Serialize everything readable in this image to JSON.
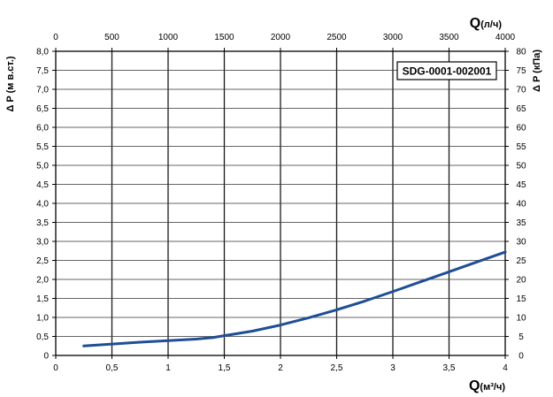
{
  "chart_data": {
    "type": "line",
    "model_label": "SDG-0001-002001",
    "x_bottom": {
      "label_main": "Q",
      "label_unit": "(м³/ч)",
      "range": [
        0,
        4
      ],
      "ticks": [
        "0",
        "0,5",
        "1",
        "1,5",
        "2",
        "2,5",
        "3",
        "3,5",
        "4"
      ]
    },
    "x_top": {
      "label_main": "Q",
      "label_unit": "(л/ч)",
      "range": [
        0,
        4000
      ],
      "ticks": [
        "0",
        "500",
        "1000",
        "1500",
        "2000",
        "2500",
        "3000",
        "3500",
        "4000"
      ]
    },
    "y_left": {
      "label": "Δ P (м в.ст.)",
      "range": [
        0,
        8
      ],
      "ticks": [
        "0",
        "0,5",
        "1,0",
        "1,5",
        "2,0",
        "2,5",
        "3,0",
        "3,5",
        "4,0",
        "4,5",
        "5,0",
        "5,5",
        "6,0",
        "6,5",
        "7,0",
        "7,5",
        "8,0"
      ]
    },
    "y_right": {
      "label": "Δ P (кПа)",
      "range": [
        0,
        80
      ],
      "ticks": [
        "0",
        "5",
        "10",
        "15",
        "20",
        "25",
        "30",
        "35",
        "40",
        "45",
        "50",
        "55",
        "60",
        "65",
        "70",
        "75",
        "80"
      ]
    },
    "grid": true,
    "series": [
      {
        "color": "#1f4e96",
        "x": [
          0.25,
          0.5,
          0.75,
          1.0,
          1.25,
          1.4,
          1.5,
          1.75,
          2.0,
          2.25,
          2.5,
          2.75,
          3.0,
          3.25,
          3.5,
          3.75,
          4.0
        ],
        "y": [
          0.25,
          0.3,
          0.35,
          0.39,
          0.43,
          0.47,
          0.52,
          0.64,
          0.8,
          0.99,
          1.2,
          1.43,
          1.68,
          1.94,
          2.2,
          2.46,
          2.72
        ]
      }
    ]
  }
}
